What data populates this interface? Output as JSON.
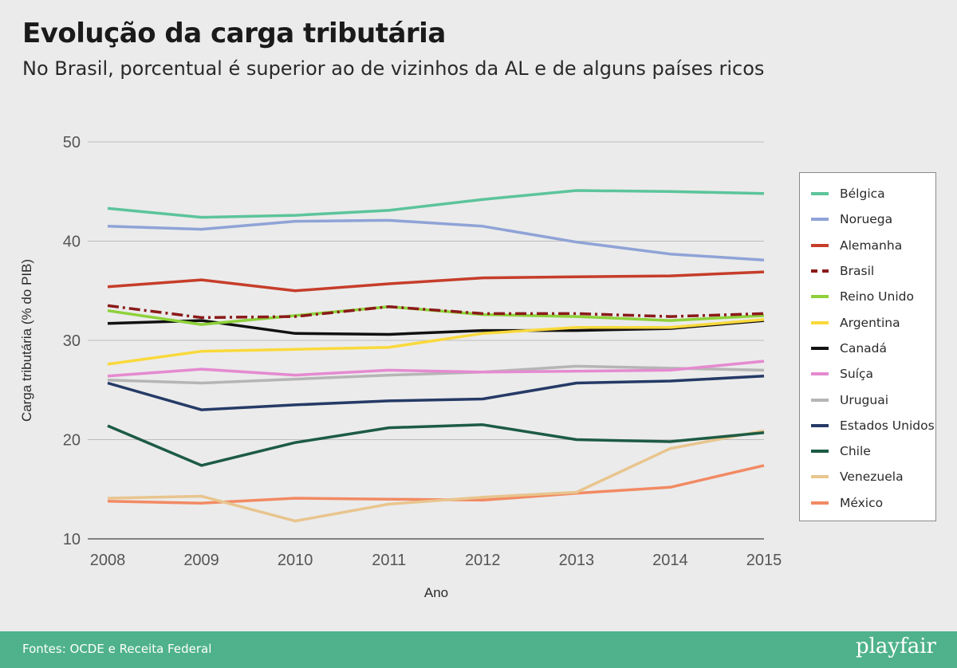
{
  "header": {
    "title": "Evolução da carga tributária",
    "subtitle": "No Brasil, porcentual é superior ao de vizinhos da AL e de alguns países ricos"
  },
  "footer": {
    "source": "Fontes: OCDE e Receita Federal",
    "brand": "playfair"
  },
  "chart_data": {
    "type": "line",
    "title": "Evolução da carga tributária",
    "xlabel": "Ano",
    "ylabel": "Carga tributária (% do PIB)",
    "x": [
      2008,
      2009,
      2010,
      2011,
      2012,
      2013,
      2014,
      2015
    ],
    "xticks": [
      "2008",
      "2009",
      "2010",
      "2011",
      "2012",
      "2013",
      "2014",
      "2015"
    ],
    "ylim": [
      10,
      50
    ],
    "yticks": [
      10,
      20,
      30,
      40,
      50
    ],
    "grid": true,
    "legend_position": "right",
    "series": [
      {
        "name": "Bélgica",
        "color": "#5cc49b",
        "dashed": false,
        "values": [
          43.3,
          42.4,
          42.6,
          43.1,
          44.2,
          45.1,
          45.0,
          44.8
        ]
      },
      {
        "name": "Noruega",
        "color": "#8fa3d6",
        "dashed": false,
        "values": [
          41.5,
          41.2,
          42.0,
          42.1,
          41.5,
          39.9,
          38.7,
          38.1
        ]
      },
      {
        "name": "Alemanha",
        "color": "#c63d2a",
        "dashed": false,
        "values": [
          35.4,
          36.1,
          35.0,
          35.7,
          36.3,
          36.4,
          36.5,
          36.9
        ]
      },
      {
        "name": "Brasil",
        "color": "#8b1a1a",
        "dashed": true,
        "values": [
          33.5,
          32.3,
          32.4,
          33.4,
          32.7,
          32.7,
          32.4,
          32.7
        ]
      },
      {
        "name": "Reino Unido",
        "color": "#8ed13a",
        "dashed": false,
        "values": [
          33.0,
          31.6,
          32.5,
          33.4,
          32.6,
          32.4,
          32.0,
          32.5
        ]
      },
      {
        "name": "Argentina",
        "color": "#f9d93b",
        "dashed": false,
        "values": [
          27.6,
          28.9,
          29.1,
          29.3,
          30.7,
          31.3,
          31.3,
          32.1
        ]
      },
      {
        "name": "Canadá",
        "color": "#111111",
        "dashed": false,
        "values": [
          31.7,
          32.0,
          30.7,
          30.6,
          31.0,
          31.0,
          31.2,
          32.0
        ]
      },
      {
        "name": "Suíça",
        "color": "#e58ad0",
        "dashed": false,
        "values": [
          26.4,
          27.1,
          26.5,
          27.0,
          26.8,
          26.9,
          27.0,
          27.9
        ]
      },
      {
        "name": "Uruguai",
        "color": "#b5b5b5",
        "dashed": false,
        "values": [
          26.0,
          25.7,
          26.1,
          26.5,
          26.8,
          27.4,
          27.2,
          27.0
        ]
      },
      {
        "name": "Estados Unidos",
        "color": "#253a66",
        "dashed": false,
        "values": [
          25.7,
          23.0,
          23.5,
          23.9,
          24.1,
          25.7,
          25.9,
          26.4
        ]
      },
      {
        "name": "Chile",
        "color": "#1d5b44",
        "dashed": false,
        "values": [
          21.4,
          17.4,
          19.7,
          21.2,
          21.5,
          20.0,
          19.8,
          20.7
        ]
      },
      {
        "name": "Venezuela",
        "color": "#e8c58e",
        "dashed": false,
        "values": [
          14.1,
          14.3,
          11.8,
          13.5,
          14.2,
          14.7,
          19.1,
          20.9
        ]
      },
      {
        "name": "México",
        "color": "#f28a63",
        "dashed": false,
        "values": [
          13.8,
          13.6,
          14.1,
          14.0,
          13.9,
          14.6,
          15.2,
          17.4
        ]
      }
    ]
  }
}
